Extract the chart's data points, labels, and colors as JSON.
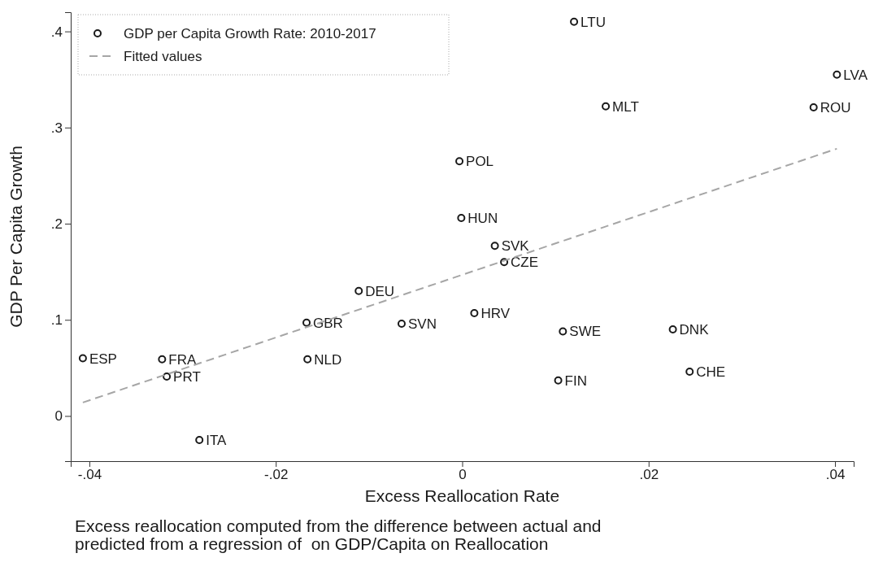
{
  "chart_data": {
    "type": "scatter",
    "xlabel": "Excess Reallocation Rate",
    "ylabel": "GDP Per Capita Growth",
    "xlim": [
      -0.042,
      0.042
    ],
    "ylim": [
      -0.047,
      0.42
    ],
    "xticks": [
      {
        "value": -0.04,
        "label": "-.04"
      },
      {
        "value": -0.02,
        "label": "-.02"
      },
      0,
      {
        "value": 0.02,
        "label": ".02"
      },
      {
        "value": 0.04,
        "label": ".04"
      }
    ],
    "yticks": [
      0,
      {
        "value": 0.1,
        "label": ".1"
      },
      {
        "value": 0.2,
        "label": ".2"
      },
      {
        "value": 0.3,
        "label": ".3"
      },
      {
        "value": 0.4,
        "label": ".4"
      }
    ],
    "grid": false,
    "legend": "top left",
    "marker": "circle",
    "series": [
      {
        "name": "GDP per Capita Growth Rate: 2010-2017",
        "color": "#1a1a1a",
        "x": [
          -0.0407,
          -0.0322,
          -0.0317,
          -0.0282,
          -0.0167,
          -0.0166,
          -0.0111,
          -0.0065,
          -0.0003,
          -0.0001,
          0.0013,
          0.0035,
          0.0045,
          0.012,
          0.0154,
          0.0108,
          0.0103,
          0.0226,
          0.0244,
          0.0402,
          0.0377
        ],
        "values": [
          0.06,
          0.059,
          0.041,
          -0.025,
          0.097,
          0.059,
          0.13,
          0.096,
          0.265,
          0.206,
          0.107,
          0.177,
          0.16,
          0.41,
          0.322,
          0.088,
          0.037,
          0.09,
          0.046,
          0.355,
          0.321
        ],
        "value_labels": [
          "ESP",
          "FRA",
          "PRT",
          "ITA",
          "GBR",
          "NLD",
          "DEU",
          "SVN",
          "POL",
          "HUN",
          "HRV",
          "SVK",
          "CZE",
          "LTU",
          "MLT",
          "SWE",
          "FIN",
          "DNK",
          "CHE",
          "LVA",
          "ROU"
        ]
      },
      {
        "name": "Fitted values",
        "type": "line",
        "color": "#a6a6a6",
        "line_style": "dashed",
        "marker": "none",
        "x": [
          -0.0407,
          0.0402
        ],
        "values": [
          0.014,
          0.278
        ]
      }
    ],
    "annotations": [
      "Excess reallocation computed from the difference between actual and",
      "predicted from a regression of  on GDP/Capita on Reallocation"
    ]
  }
}
